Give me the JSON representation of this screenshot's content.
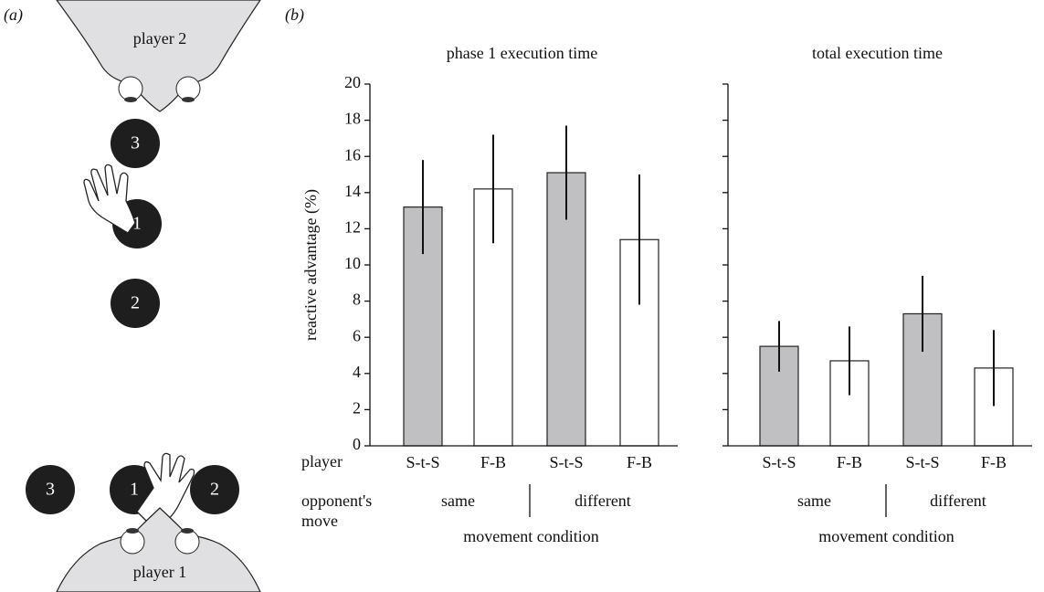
{
  "panel_labels": [
    "(a)",
    "(b)"
  ],
  "diagram": {
    "top_player": "player 2",
    "bottom_player": "player 1",
    "top_targets": [
      "3",
      "1",
      "2"
    ],
    "bottom_targets": [
      "3",
      "1",
      "2"
    ]
  },
  "row_labels": [
    "player",
    "opponent's move"
  ],
  "chart_data": [
    {
      "type": "bar",
      "title": "phase 1 execution time",
      "y_label": "reactive advantage (%)",
      "categories": [
        "S-t-S",
        "F-B",
        "S-t-S",
        "F-B"
      ],
      "groups": [
        "same",
        "different"
      ],
      "x_label": "movement condition",
      "values": [
        13.2,
        14.2,
        15.1,
        11.4
      ],
      "errors": [
        2.6,
        3.0,
        2.6,
        3.6
      ],
      "colors": [
        "#c0c0c2",
        "#ffffff",
        "#c0c0c2",
        "#ffffff"
      ],
      "ylim": [
        0,
        20
      ],
      "yticks": [
        0,
        2,
        4,
        6,
        8,
        10,
        12,
        14,
        16,
        18,
        20
      ],
      "tick_labels": true
    },
    {
      "type": "bar",
      "title": "total execution time",
      "categories": [
        "S-t-S",
        "F-B",
        "S-t-S",
        "F-B"
      ],
      "groups": [
        "same",
        "different"
      ],
      "x_label": "movement condition",
      "values": [
        5.5,
        4.7,
        7.3,
        4.3
      ],
      "errors": [
        1.4,
        1.9,
        2.1,
        2.1
      ],
      "colors": [
        "#c0c0c2",
        "#ffffff",
        "#c0c0c2",
        "#ffffff"
      ],
      "ylim": [
        0,
        20
      ],
      "yticks": [
        0,
        2,
        4,
        6,
        8,
        10,
        12,
        14,
        16,
        18,
        20
      ],
      "tick_labels": false
    }
  ]
}
